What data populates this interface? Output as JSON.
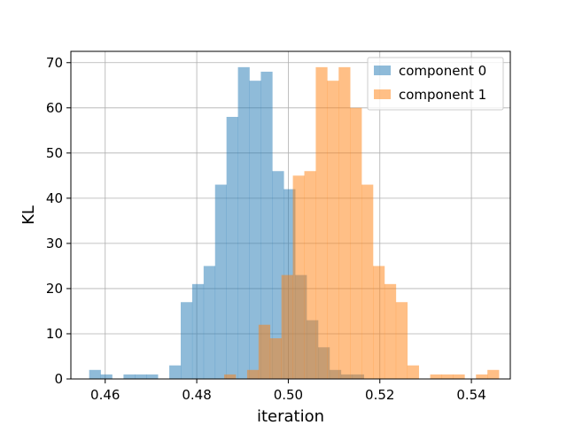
{
  "chart_data": {
    "type": "histogram",
    "xlabel": "iteration",
    "ylabel": "KL",
    "xlim": [
      0.4525,
      0.5485
    ],
    "ylim": [
      0,
      72.5
    ],
    "xticks": [
      0.46,
      0.48,
      0.5,
      0.52,
      0.54
    ],
    "xtick_labels": [
      "0.46",
      "0.48",
      "0.50",
      "0.52",
      "0.54"
    ],
    "yticks": [
      0,
      10,
      20,
      30,
      40,
      50,
      60,
      70
    ],
    "ytick_labels": [
      "0",
      "10",
      "20",
      "30",
      "40",
      "50",
      "60",
      "70"
    ],
    "grid": true,
    "legend_position": "top-right",
    "bin_width": 0.0025,
    "series": [
      {
        "name": "component 0",
        "color": "#1f77b4",
        "alpha": 0.5,
        "bins": [
          [
            0.4565,
            2
          ],
          [
            0.459,
            1
          ],
          [
            0.464,
            1
          ],
          [
            0.4665,
            1
          ],
          [
            0.469,
            1
          ],
          [
            0.474,
            3
          ],
          [
            0.4765,
            17
          ],
          [
            0.479,
            21
          ],
          [
            0.4815,
            25
          ],
          [
            0.484,
            43
          ],
          [
            0.4865,
            58
          ],
          [
            0.489,
            69
          ],
          [
            0.4915,
            66
          ],
          [
            0.494,
            68
          ],
          [
            0.4965,
            46
          ],
          [
            0.499,
            42
          ],
          [
            0.5015,
            23
          ],
          [
            0.504,
            13
          ],
          [
            0.5065,
            7
          ],
          [
            0.509,
            2
          ],
          [
            0.5115,
            1
          ],
          [
            0.514,
            1
          ]
        ]
      },
      {
        "name": "component 1",
        "color": "#ff7f0e",
        "alpha": 0.5,
        "bins": [
          [
            0.486,
            1
          ],
          [
            0.4885,
            0
          ],
          [
            0.491,
            2
          ],
          [
            0.4935,
            12
          ],
          [
            0.496,
            9
          ],
          [
            0.4985,
            23
          ],
          [
            0.501,
            45
          ],
          [
            0.5035,
            46
          ],
          [
            0.506,
            69
          ],
          [
            0.5085,
            66
          ],
          [
            0.511,
            69
          ],
          [
            0.5135,
            60
          ],
          [
            0.516,
            43
          ],
          [
            0.5185,
            25
          ],
          [
            0.521,
            21
          ],
          [
            0.5235,
            17
          ],
          [
            0.526,
            3
          ],
          [
            0.531,
            1
          ],
          [
            0.5335,
            1
          ],
          [
            0.536,
            1
          ],
          [
            0.541,
            1
          ],
          [
            0.5435,
            2
          ]
        ]
      }
    ]
  }
}
